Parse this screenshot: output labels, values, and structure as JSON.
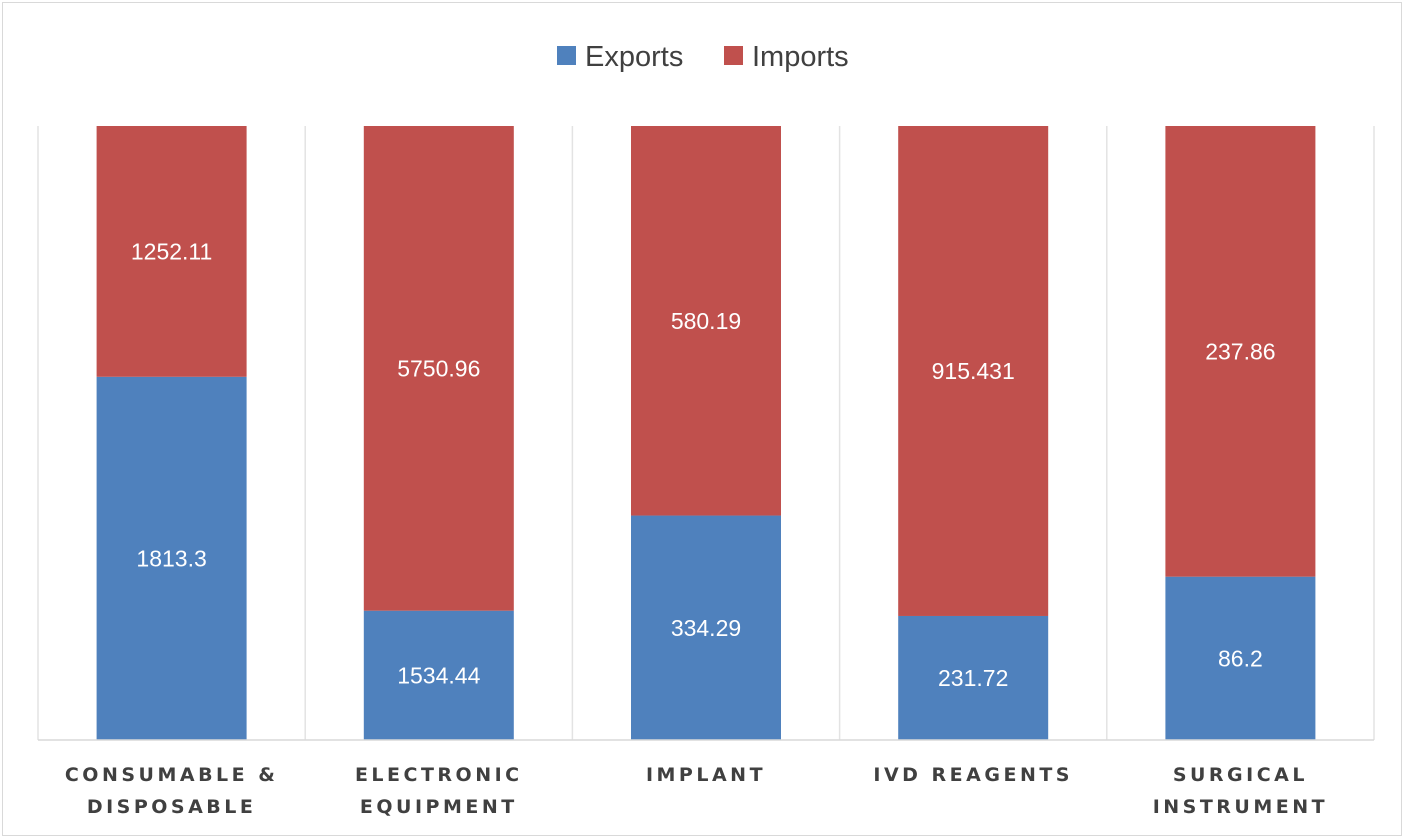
{
  "chart_data": {
    "type": "bar",
    "stacked": true,
    "normalized": true,
    "categories": [
      [
        "CONSUMABLE &",
        "DISPOSABLE"
      ],
      [
        "ELECTRONIC",
        "EQUIPMENT"
      ],
      [
        "IMPLANT"
      ],
      [
        "IVD REAGENTS"
      ],
      [
        "SURGICAL",
        "INSTRUMENT"
      ]
    ],
    "series": [
      {
        "name": "Exports",
        "color": "#4f81bd",
        "values": [
          1813.3,
          1534.44,
          334.29,
          231.72,
          86.2
        ],
        "labels": [
          "1813.3",
          "1534.44",
          "334.29",
          "231.72",
          "86.2"
        ]
      },
      {
        "name": "Imports",
        "color": "#c0504d",
        "values": [
          1252.11,
          5750.96,
          580.19,
          915.431,
          237.86
        ],
        "labels": [
          "1252.11",
          "5750.96",
          "580.19",
          "915.431",
          "237.86"
        ]
      }
    ],
    "ylim": [
      0,
      1
    ],
    "grid": "vertical category separators",
    "legend": "top-center",
    "title": "",
    "xlabel": "",
    "ylabel": ""
  }
}
